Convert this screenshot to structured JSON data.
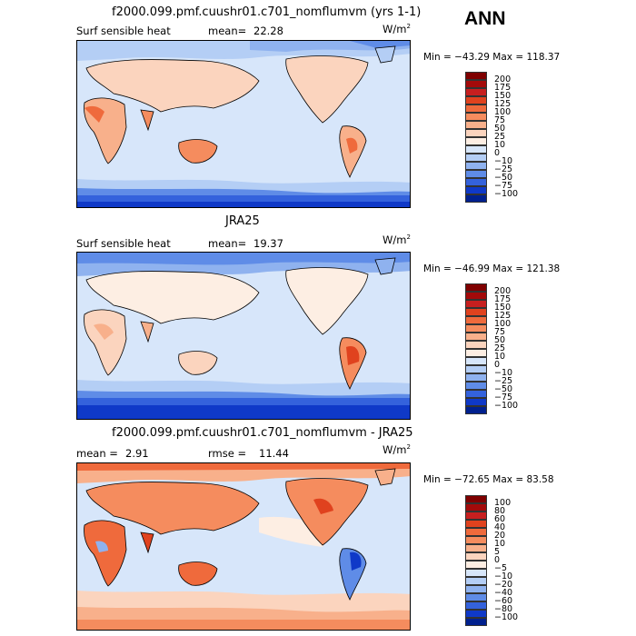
{
  "season_label": "ANN",
  "panels": [
    {
      "title": "f2000.099.pmf.cuushr01.c701_nomflumvm (yrs 1-1)",
      "left_label_a": "Surf sensible heat",
      "left_label_b": "mean=",
      "left_value": "22.28",
      "units": "W/m",
      "units_sup": "2",
      "minmax": "Min = −43.29 Max = 118.37",
      "colorbar": [
        "200",
        "175",
        "150",
        "125",
        "100",
        "75",
        "50",
        "25",
        "10",
        "0",
        "−10",
        "−25",
        "−50",
        "−75",
        "−100"
      ],
      "colors": [
        "#7f0000",
        "#a30a0a",
        "#c71f1f",
        "#e0421e",
        "#ef6a3c",
        "#f58c5e",
        "#f8b08b",
        "#fbd4be",
        "#fdeee3",
        "#d7e6fa",
        "#b4cef5",
        "#8fb2ef",
        "#5f8ce7",
        "#3462dc",
        "#0f39c8",
        "#00208e"
      ]
    },
    {
      "title": "JRA25",
      "left_label_a": "Surf sensible heat",
      "left_label_b": "mean=",
      "left_value": "19.37",
      "units": "W/m",
      "units_sup": "2",
      "minmax": "Min = −46.99 Max = 121.38",
      "colorbar": [
        "200",
        "175",
        "150",
        "125",
        "100",
        "75",
        "50",
        "25",
        "10",
        "0",
        "−10",
        "−25",
        "−50",
        "−75",
        "−100"
      ],
      "colors": [
        "#7f0000",
        "#a30a0a",
        "#c71f1f",
        "#e0421e",
        "#ef6a3c",
        "#f58c5e",
        "#f8b08b",
        "#fbd4be",
        "#fdeee3",
        "#d7e6fa",
        "#b4cef5",
        "#8fb2ef",
        "#5f8ce7",
        "#3462dc",
        "#0f39c8",
        "#00208e"
      ]
    },
    {
      "title": "f2000.099.pmf.cuushr01.c701_nomflumvm - JRA25",
      "left_label_a": "mean =",
      "left_label_b": "rmse =",
      "left_value": "2.91",
      "left_value_b": "11.44",
      "units": "W/m",
      "units_sup": "2",
      "minmax": "Min = −72.65 Max = 83.58",
      "colorbar": [
        "100",
        "80",
        "60",
        "40",
        "20",
        "10",
        "5",
        "0",
        "−5",
        "−10",
        "−20",
        "−40",
        "−60",
        "−80",
        "−100"
      ],
      "colors": [
        "#7f0000",
        "#a30a0a",
        "#c71f1f",
        "#e0421e",
        "#ef6a3c",
        "#f58c5e",
        "#f8b08b",
        "#fbd4be",
        "#fdeee3",
        "#d7e6fa",
        "#b4cef5",
        "#8fb2ef",
        "#5f8ce7",
        "#3462dc",
        "#0f39c8",
        "#00208e"
      ]
    }
  ],
  "chart_data": [
    {
      "type": "heatmap",
      "title": "f2000.099.pmf.cuushr01.c701_nomflumvm (yrs 1-1)",
      "variable": "Surf sensible heat",
      "units": "W/m2",
      "mean": 22.28,
      "min": -43.29,
      "max": 118.37,
      "contour_levels": [
        -100,
        -75,
        -50,
        -25,
        -10,
        0,
        10,
        25,
        50,
        75,
        100,
        125,
        150,
        175,
        200
      ]
    },
    {
      "type": "heatmap",
      "title": "JRA25",
      "variable": "Surf sensible heat",
      "units": "W/m2",
      "mean": 19.37,
      "min": -46.99,
      "max": 121.38,
      "contour_levels": [
        -100,
        -75,
        -50,
        -25,
        -10,
        0,
        10,
        25,
        50,
        75,
        100,
        125,
        150,
        175,
        200
      ]
    },
    {
      "type": "heatmap",
      "title": "f2000.099.pmf.cuushr01.c701_nomflumvm - JRA25",
      "units": "W/m2",
      "mean": 2.91,
      "rmse": 11.44,
      "min": -72.65,
      "max": 83.58,
      "contour_levels": [
        -100,
        -80,
        -60,
        -40,
        -20,
        -10,
        -5,
        0,
        5,
        10,
        20,
        40,
        60,
        80,
        100
      ]
    }
  ]
}
